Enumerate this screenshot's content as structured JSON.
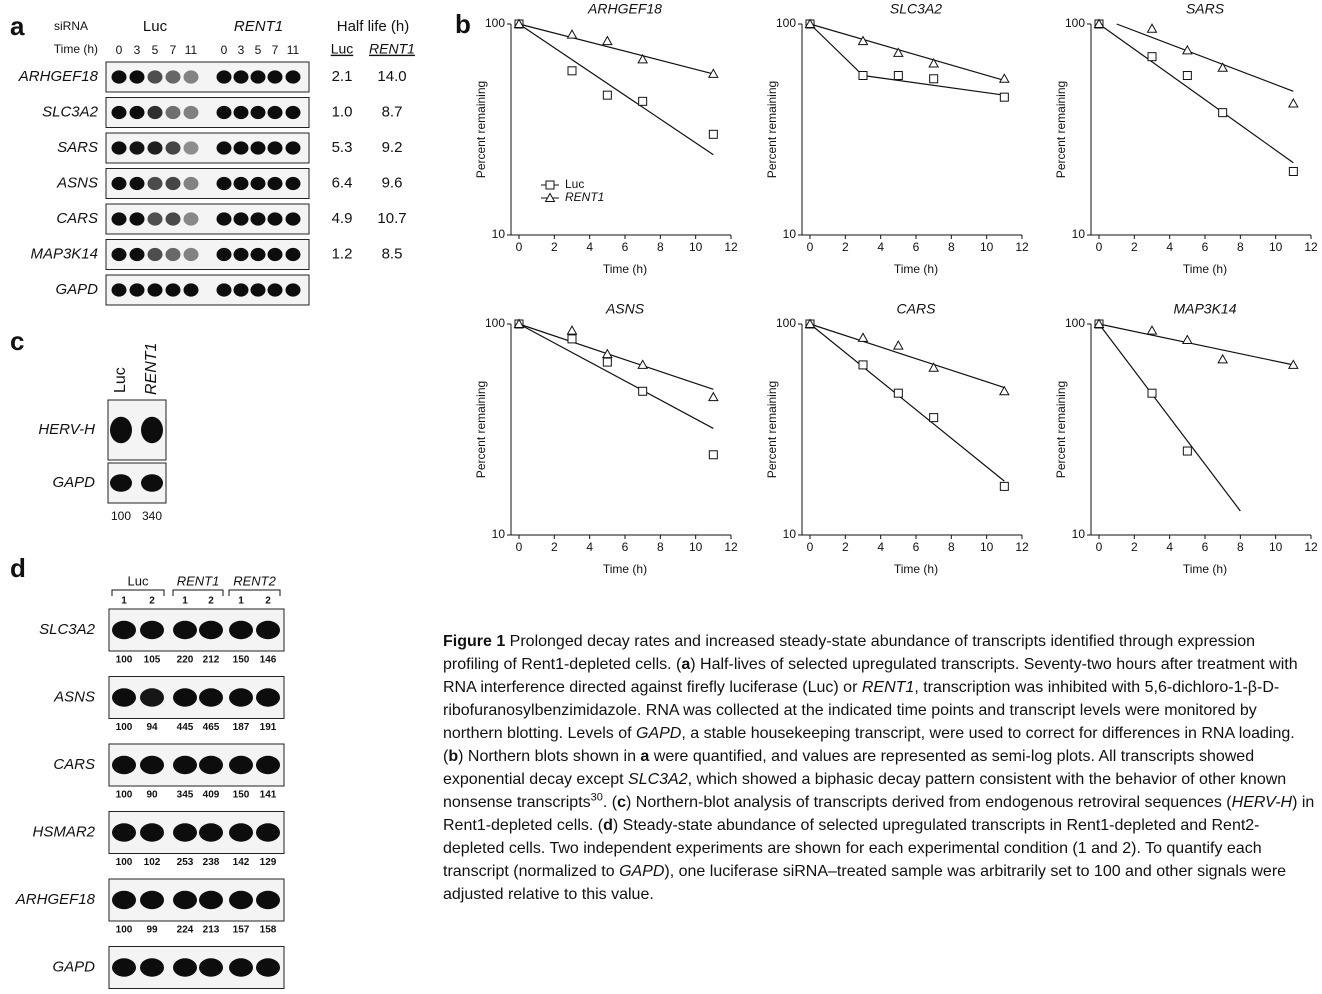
{
  "panel_labels": [
    "a",
    "b",
    "c",
    "d"
  ],
  "panel_a": {
    "sirna_label": "siRNA",
    "groups": [
      "Luc",
      "RENT1"
    ],
    "time_label": "Time (h)",
    "times": [
      0,
      3,
      5,
      7,
      11
    ],
    "half_life_label": "Half life (h)",
    "half_life_columns": [
      "Luc",
      "RENT1"
    ],
    "rows": [
      {
        "gene": "ARHGEF18",
        "half_lives": [
          "2.1",
          "14.0"
        ]
      },
      {
        "gene": "SLC3A2",
        "half_lives": [
          "1.0",
          "8.7"
        ]
      },
      {
        "gene": "SARS",
        "half_lives": [
          "5.3",
          "9.2"
        ]
      },
      {
        "gene": "ASNS",
        "half_lives": [
          "6.4",
          "9.6"
        ]
      },
      {
        "gene": "CARS",
        "half_lives": [
          "4.9",
          "10.7"
        ]
      },
      {
        "gene": "MAP3K14",
        "half_lives": [
          "1.2",
          "8.5"
        ]
      },
      {
        "gene": "GAPD",
        "half_lives": []
      }
    ]
  },
  "chart_data": [
    {
      "type": "line",
      "title": "ARHGEF18",
      "x_label": "Time (h)",
      "y_label": "Percent remaining",
      "log_y": true,
      "legend": "lower left",
      "x": [
        0,
        3,
        5,
        7,
        11
      ],
      "xlim": [
        0,
        12
      ],
      "xticks": [
        0,
        2,
        4,
        6,
        8,
        10,
        12
      ],
      "ylim": [
        10,
        100
      ],
      "yticks": [
        10,
        100
      ],
      "series": [
        {
          "name": "Luc",
          "color": "#111111",
          "marker": "square",
          "values": [
            100,
            60,
            46,
            43,
            30
          ]
        },
        {
          "name": "RENT1",
          "color": "#111111",
          "marker": "triangle",
          "values": [
            100,
            89,
            83,
            68,
            58
          ]
        }
      ],
      "fits": [
        {
          "x": [
            0,
            11
          ],
          "values": [
            100,
            24
          ]
        },
        {
          "x": [
            0,
            11
          ],
          "values": [
            100,
            58
          ]
        }
      ]
    },
    {
      "type": "line",
      "title": "SLC3A2",
      "x_label": "Time (h)",
      "y_label": "Percent remaining",
      "log_y": true,
      "x": [
        0,
        3,
        5,
        7,
        11
      ],
      "xlim": [
        0,
        12
      ],
      "xticks": [
        0,
        2,
        4,
        6,
        8,
        10,
        12
      ],
      "ylim": [
        10,
        100
      ],
      "yticks": [
        10,
        100
      ],
      "series": [
        {
          "color": "#111111",
          "marker": "square",
          "values": [
            100,
            57,
            57,
            55,
            45
          ]
        },
        {
          "color": "#111111",
          "marker": "triangle",
          "values": [
            100,
            83,
            73,
            65,
            55
          ]
        }
      ],
      "fits": [
        {
          "x": [
            0,
            3,
            11
          ],
          "values": [
            100,
            57,
            46
          ]
        },
        {
          "x": [
            0,
            11
          ],
          "values": [
            100,
            54
          ]
        }
      ]
    },
    {
      "type": "line",
      "title": "SARS",
      "x_label": "Time (h)",
      "y_label": "Percent remaining",
      "log_y": true,
      "x": [
        0,
        3,
        5,
        7,
        11
      ],
      "xlim": [
        0,
        12
      ],
      "xticks": [
        0,
        2,
        4,
        6,
        8,
        10,
        12
      ],
      "ylim": [
        10,
        100
      ],
      "yticks": [
        10,
        100
      ],
      "series": [
        {
          "color": "#111111",
          "marker": "square",
          "values": [
            100,
            70,
            57,
            38,
            20
          ]
        },
        {
          "color": "#111111",
          "marker": "triangle",
          "values": [
            100,
            95,
            75,
            62,
            42
          ]
        }
      ],
      "fits": [
        {
          "x": [
            0,
            11
          ],
          "values": [
            100,
            22
          ]
        },
        {
          "x": [
            1,
            11
          ],
          "values": [
            100,
            48
          ]
        }
      ]
    },
    {
      "type": "line",
      "title": "ASNS",
      "x_label": "Time (h)",
      "y_label": "Percent remaining",
      "log_y": true,
      "x": [
        0,
        3,
        5,
        7,
        11
      ],
      "xlim": [
        0,
        12
      ],
      "xticks": [
        0,
        2,
        4,
        6,
        8,
        10,
        12
      ],
      "ylim": [
        10,
        100
      ],
      "yticks": [
        10,
        100
      ],
      "series": [
        {
          "color": "#111111",
          "marker": "square",
          "values": [
            100,
            85,
            66,
            48,
            24
          ]
        },
        {
          "color": "#111111",
          "marker": "triangle",
          "values": [
            100,
            93,
            72,
            64,
            45
          ]
        }
      ],
      "fits": [
        {
          "x": [
            0,
            11
          ],
          "values": [
            100,
            32
          ]
        },
        {
          "x": [
            0,
            11
          ],
          "values": [
            100,
            49
          ]
        }
      ]
    },
    {
      "type": "line",
      "title": "CARS",
      "x_label": "Time (h)",
      "y_label": "Percent remaining",
      "log_y": true,
      "x": [
        0,
        3,
        5,
        7,
        11
      ],
      "xlim": [
        0,
        12
      ],
      "xticks": [
        0,
        2,
        4,
        6,
        8,
        10,
        12
      ],
      "ylim": [
        10,
        100
      ],
      "yticks": [
        10,
        100
      ],
      "series": [
        {
          "color": "#111111",
          "marker": "square",
          "values": [
            100,
            64,
            47,
            36,
            17
          ]
        },
        {
          "color": "#111111",
          "marker": "triangle",
          "values": [
            100,
            86,
            79,
            62,
            48
          ]
        }
      ],
      "fits": [
        {
          "x": [
            0,
            11
          ],
          "values": [
            100,
            18
          ]
        },
        {
          "x": [
            0,
            11
          ],
          "values": [
            100,
            50
          ]
        }
      ]
    },
    {
      "type": "line",
      "title": "MAP3K14",
      "x_label": "Time (h)",
      "y_label": "Percent remaining",
      "log_y": true,
      "x": [
        0,
        3,
        5,
        7,
        11
      ],
      "xlim": [
        0,
        12
      ],
      "xticks": [
        0,
        2,
        4,
        6,
        8,
        10,
        12
      ],
      "ylim": [
        10,
        100
      ],
      "yticks": [
        10,
        100
      ],
      "series": [
        {
          "color": "#111111",
          "marker": "square",
          "values": [
            100,
            47,
            25,
            null,
            null
          ]
        },
        {
          "color": "#111111",
          "marker": "triangle",
          "values": [
            100,
            93,
            84,
            68,
            64
          ]
        }
      ],
      "fits": [
        {
          "x": [
            0,
            8
          ],
          "values": [
            100,
            13
          ]
        },
        {
          "x": [
            0,
            11
          ],
          "values": [
            100,
            64
          ]
        }
      ]
    }
  ],
  "panel_c": {
    "lanes": [
      "Luc",
      "RENT1"
    ],
    "rows": [
      "HERV-H",
      "GAPD"
    ],
    "values": [
      100,
      340
    ]
  },
  "panel_d": {
    "groups": [
      "Luc",
      "RENT1",
      "RENT2"
    ],
    "lanes": [
      1,
      2
    ],
    "rows": [
      {
        "gene": "SLC3A2",
        "values": [
          100,
          105,
          220,
          212,
          150,
          146
        ]
      },
      {
        "gene": "ASNS",
        "values": [
          100,
          94,
          445,
          465,
          187,
          191
        ]
      },
      {
        "gene": "CARS",
        "values": [
          100,
          90,
          345,
          409,
          150,
          141
        ]
      },
      {
        "gene": "HSMAR2",
        "values": [
          100,
          102,
          253,
          238,
          142,
          129
        ]
      },
      {
        "gene": "ARHGEF18",
        "values": [
          100,
          99,
          224,
          213,
          157,
          158
        ]
      },
      {
        "gene": "GAPD",
        "values": []
      }
    ]
  },
  "caption": [
    "Figure 1",
    " Prolonged decay rates and increased steady-state abundance of transcripts identified through expression profiling of Rent1-depleted cells. (",
    "a",
    ") Half-lives of selected upregulated transcripts. Seventy-two hours after treatment with RNA interference directed against firefly luciferase (Luc) or ",
    "RENT1",
    ", transcription was inhibited with 5,6-dichloro-1-β-D-ribofuranosylbenzimidazole. RNA was collected at the indicated time points and transcript levels were monitored by northern blotting. Levels of ",
    "GAPD",
    ", a stable housekeeping transcript, were used to correct for differences in RNA loading. (",
    "b",
    ") Northern blots shown in ",
    "a",
    " were quantified, and values are represented as semi-log plots. All transcripts showed exponential decay except ",
    "SLC3A2",
    ", which showed a biphasic decay pattern consistent with the behavior of other known nonsense transcripts",
    "30",
    ". (",
    "c",
    ") Northern-blot analysis of transcripts derived from endogenous retroviral sequences (",
    "HERV-H",
    ") in Rent1-depleted cells. (",
    "d",
    ") Steady-state abundance of selected upregulated transcripts in Rent1-depleted and Rent2-depleted cells. Two independent experiments are shown for each experimental condition (1 and 2). To quantify each transcript (normalized to ",
    "GAPD",
    "), one luciferase siRNA–treated sample was arbitrarily set to 100 and other signals were adjusted relative to this value."
  ]
}
